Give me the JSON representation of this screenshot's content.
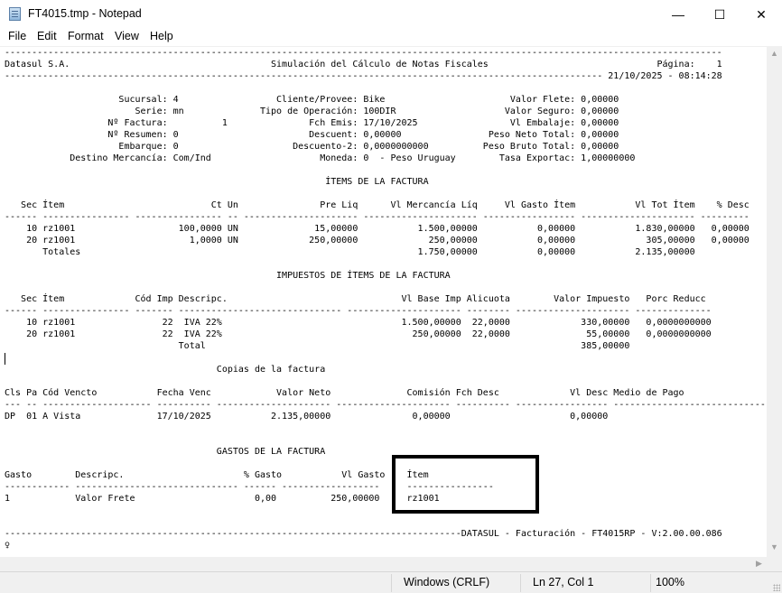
{
  "window": {
    "title": "FT4015.tmp - Notepad",
    "minimize_icon": "minimize-icon",
    "maximize_icon": "maximize-icon",
    "close_icon": "close-icon",
    "minimize_glyph": "—",
    "maximize_glyph": "☐",
    "close_glyph": "✕"
  },
  "menu": [
    "File",
    "Edit",
    "Format",
    "View",
    "Help"
  ],
  "document": {
    "lines": [
      "------------------------------------------------------------------------------------------------------------------------------------",
      "Datasul S.A.                                     Simulación del Cálculo de Notas Fiscales                               Página:    1",
      "-------------------------------------------------------------------------------------------------------------- 21/10/2025 - 08:14:28",
      "",
      "                     Sucursal: 4                  Cliente/Provee: Bike                       Valor Flete: 0,00000",
      "                        Serie: mn              Tipo de Operación: 100DIR                    Valor Seguro: 0,00000",
      "                   Nº Factura:          1               Fch Emis: 17/10/2025                 Vl Embalaje: 0,00000",
      "                   Nº Resumen: 0                        Descuent: 0,00000                Peso Neto Total: 0,00000",
      "                     Embarque: 0                     Descuento-2: 0,0000000000          Peso Bruto Total: 0,00000",
      "            Destino Mercancía: Com/Ind                    Moneda: 0  - Peso Uruguay        Tasa Exportac: 1,00000000",
      "",
      "                                                           ÍTEMS DE LA FACTURA",
      "",
      "   Sec Ítem                           Ct Un               Pre Liq      Vl Mercancía Líq     Vl Gasto Ítem           Vl Tot Ítem    % Desc",
      "------ ---------------- ---------------- -- --------------------- --------------------- ----------------- --------------------- ---------",
      "    10 rz1001                   100,0000 UN              15,00000           1.500,00000           0,00000           1.830,00000   0,00000",
      "    20 rz1001                     1,0000 UN             250,00000             250,00000           0,00000             305,00000   0,00000",
      "       Totales                                                              1.750,00000           0,00000           2.135,00000",
      "",
      "                                                  IMPUESTOS DE ÍTEMS DE LA FACTURA",
      "",
      "   Sec Ítem             Cód Imp Descripc.                                Vl Base Imp Alicuota        Valor Impuesto   Porc Reducc",
      "------ ---------------- ------- ------------------------------ --------------------- -------- --------------------- --------------",
      "    10 rz1001                22  IVA 22%                                 1.500,00000  22,0000             330,00000   0,0000000000",
      "    20 rz1001                22  IVA 22%                                   250,00000  22,0000              55,00000   0,0000000000",
      "                                Total                                                                     385,00000",
      "",
      "                                       Copias de la factura",
      "",
      "Cls Pa Cód Vencto           Fecha Venc            Valor Neto              Comisión Fch Desc             Vl Desc Medio de Pago",
      "--- -- -------------------- ---------- --------------------- --------------------- ---------- ----------------- ----------------------------",
      "DP  01 A Vista              17/10/2025           2.135,00000               0,00000                      0,00000",
      "",
      "",
      "                                       GASTOS DE LA FACTURA",
      "",
      "Gasto        Descripc.                      % Gasto           Vl Gasto    Ítem",
      "------------ ------------------------------ ------ ------------------     ----------------",
      "1            Valor Frete                      0,00          250,00000     rz1001",
      "",
      "",
      "------------------------------------------------------------------------------------DATASUL - Facturación - FT4015RP - V:2.00.00.086",
      "♀"
    ]
  },
  "status": {
    "line_ending": "Windows (CRLF)",
    "position": "Ln 27, Col 1",
    "zoom": "100%"
  },
  "colors": {
    "text": "#000000",
    "chrome": "#f0f0f0",
    "highlight_border": "#000000"
  }
}
